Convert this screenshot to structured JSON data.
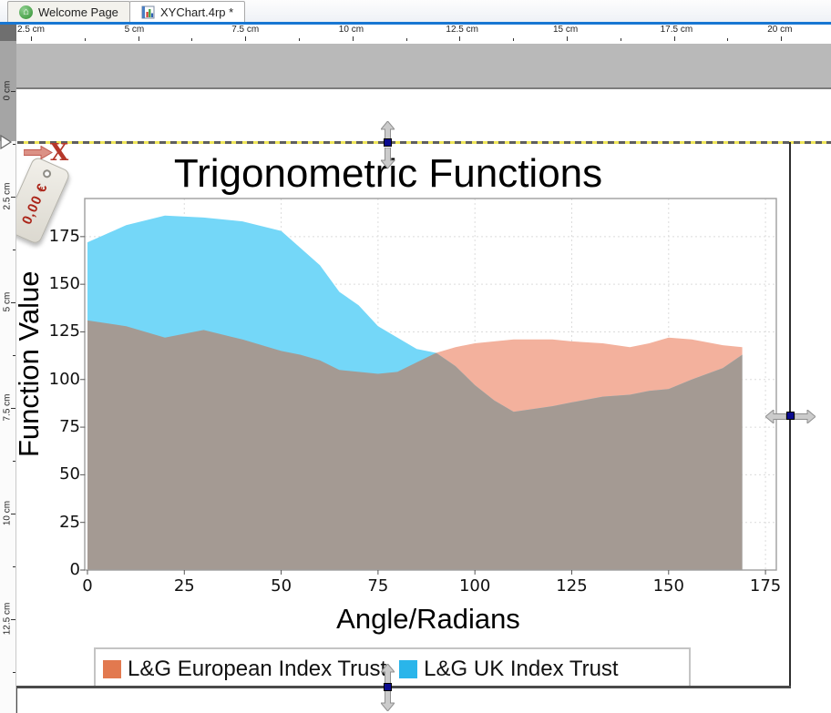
{
  "window": {
    "tabs": [
      {
        "label": "Welcome Page",
        "active": false
      },
      {
        "label": "XYChart.4rp *",
        "active": true
      }
    ]
  },
  "colors": {
    "accent_blue": "#1877d2",
    "selection_yellow": "#efe659",
    "handle_blue": "#0b0b8f",
    "band_gray": "#b9b9b9"
  },
  "rulers": {
    "unit": "cm",
    "horizontal_labels": [
      "2.5 cm",
      "5 cm",
      "7.5 cm",
      "10 cm",
      "12.5 cm",
      "15 cm",
      "17.5 cm",
      "20 cm"
    ],
    "vertical_labels": [
      "0 cm",
      "2.5 cm",
      "5 cm",
      "7.5 cm",
      "10 cm",
      "12.5 cm"
    ]
  },
  "drag_feedback": {
    "value_label": "0,00 €",
    "cancel_mark": "X"
  },
  "chart_data": {
    "type": "area",
    "title": "Trigonometric Functions",
    "xlabel": "Angle/Radians",
    "ylabel": "Function Value",
    "xticks": [
      0,
      25,
      50,
      75,
      100,
      125,
      150,
      175
    ],
    "yticks": [
      0,
      25,
      50,
      75,
      100,
      125,
      150,
      175
    ],
    "xlim": [
      -0.7,
      177.8
    ],
    "ylim": [
      0,
      195
    ],
    "grid": true,
    "legend_position": "bottom",
    "x": [
      0,
      10,
      20,
      30,
      40,
      50,
      55,
      60,
      65,
      70,
      75,
      80,
      85,
      90,
      95,
      100,
      105,
      110,
      120,
      125,
      133,
      140,
      145,
      150,
      156,
      164,
      169
    ],
    "series": [
      {
        "name": "L&G European Index Trust",
        "swatch": "#e2794f",
        "fill": "#f3b19d",
        "values": [
          131,
          128,
          122,
          126,
          121,
          115,
          113,
          110,
          105,
          104,
          103,
          104,
          109,
          114,
          117,
          119,
          120,
          121,
          121,
          120,
          119,
          117,
          119,
          122,
          121,
          118,
          117
        ]
      },
      {
        "name": "L&G UK Index Trust",
        "swatch": "#2ab5ea",
        "fill": "#74d7f8",
        "values": [
          172,
          181,
          186,
          185,
          183,
          178,
          169,
          160,
          146,
          139,
          128,
          122,
          116,
          114,
          107,
          97,
          89,
          83,
          86,
          88,
          91,
          92,
          94,
          95,
          100,
          106,
          113
        ]
      }
    ],
    "overlap_fill": "#a49a93"
  }
}
